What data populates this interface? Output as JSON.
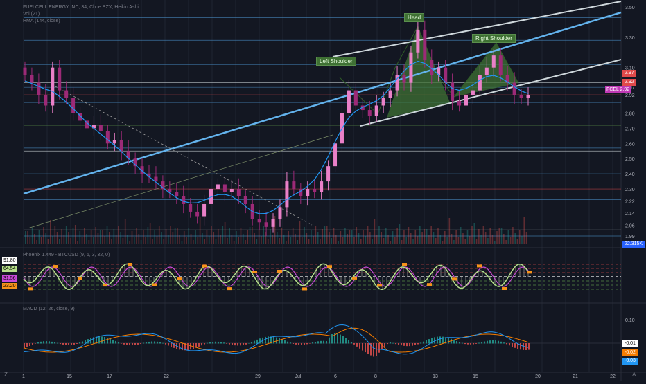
{
  "chart_data": [
    {
      "type": "candlestick",
      "title": "FUELCELL ENERGY INC, 34, Cboe BZX, Heikin Ashi",
      "indicators": [
        "Vol (21)",
        "HMA (144, close)"
      ],
      "symbol_tag": "FCEL",
      "last_price": "2.92",
      "price_tag": "2.97",
      "volume_tag": "22.315K",
      "y_ticks": [
        "3.50",
        "3.30",
        "3.10",
        "2.97",
        "2.92",
        "2.80",
        "2.70",
        "2.60",
        "2.50",
        "2.40",
        "2.30",
        "2.22",
        "2.14",
        "2.06",
        "1.99"
      ],
      "annotations": [
        "Head",
        "Left Shoulder",
        "Right Shoulder"
      ],
      "approx_close": [
        3.05,
        3.0,
        2.92,
        2.85,
        3.1,
        2.95,
        2.9,
        2.8,
        2.75,
        2.7,
        2.72,
        2.68,
        2.6,
        2.62,
        2.55,
        2.5,
        2.45,
        2.4,
        2.38,
        2.35,
        2.3,
        2.28,
        2.25,
        2.2,
        2.15,
        2.12,
        2.2,
        2.3,
        2.33,
        2.28,
        2.3,
        2.25,
        2.2,
        2.1,
        2.08,
        2.05,
        2.1,
        2.18,
        2.35,
        2.3,
        2.25,
        2.3,
        2.28,
        2.35,
        2.45,
        2.6,
        2.8,
        2.95,
        2.85,
        2.82,
        2.78,
        2.85,
        2.9,
        2.95,
        3.05,
        3.0,
        3.2,
        3.35,
        3.15,
        3.05,
        3.1,
        3.0,
        2.88,
        2.85,
        2.92,
        2.95,
        3.05,
        3.1,
        3.18,
        3.05,
        3.0,
        2.92,
        2.9,
        2.92
      ]
    },
    {
      "type": "line",
      "title": "Phoenix 1.449 - BTCUSD (9, 6, 3, 32, 0)",
      "tags": [
        "91.80",
        "64.54",
        "31.56",
        "23.20"
      ]
    },
    {
      "type": "bar",
      "title": "MACD (12, 26, close, 9)",
      "y_ticks": [
        "0.10"
      ],
      "tags": [
        "-0.01",
        "-0.02",
        "-0.03"
      ]
    }
  ],
  "x_ticks": [
    "1",
    "15",
    "17",
    "22",
    "29",
    "Jul",
    "6",
    "8",
    "13",
    "15",
    "20",
    "21",
    "22"
  ],
  "corner": {
    "left": "Z",
    "right": "A"
  }
}
